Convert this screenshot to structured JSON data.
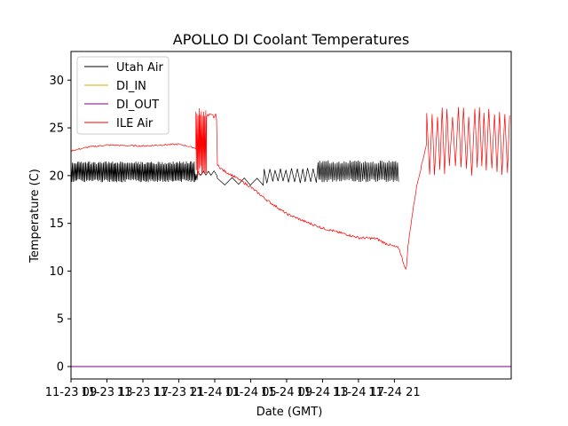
{
  "chart_data": {
    "type": "line",
    "title": "APOLLO DI Coolant Temperatures",
    "xlabel": "Date (GMT)",
    "ylabel": "Temperature (C)",
    "xlim": [
      0,
      49
    ],
    "ylim": [
      -1.3,
      33
    ],
    "x_unit": "hours since 11-23 09:00 GMT",
    "xticks": [
      {
        "x": 0,
        "label": "11-23 09"
      },
      {
        "x": 4,
        "label": "11-23 13"
      },
      {
        "x": 8,
        "label": "11-23 17"
      },
      {
        "x": 12,
        "label": "11-23 21"
      },
      {
        "x": 16,
        "label": "11-24 01"
      },
      {
        "x": 20,
        "label": "11-24 05"
      },
      {
        "x": 24,
        "label": "11-24 09"
      },
      {
        "x": 28,
        "label": "11-24 13"
      },
      {
        "x": 32,
        "label": "11-24 17"
      },
      {
        "x": 36,
        "label": "11-24 21"
      }
    ],
    "yticks": [
      0,
      5,
      10,
      15,
      20,
      25,
      30
    ],
    "legend_position": "top-left",
    "series": [
      {
        "name": "Utah Air",
        "color": "#000000",
        "style": "oscillating",
        "segments": [
          {
            "from": 0,
            "to": 13.8,
            "low": 19.3,
            "high": 21.5,
            "period": 0.15
          },
          {
            "from": 13.8,
            "to": 14.1,
            "low": 19.5,
            "high": 20.2,
            "period": 0.15
          },
          {
            "from": 14.1,
            "to": 16.3,
            "low": 20.0,
            "high": 20.5,
            "period": 0.6
          },
          {
            "from": 16.3,
            "to": 21.5,
            "low": 19.0,
            "high": 19.8,
            "period": 1.5
          },
          {
            "from": 21.5,
            "to": 27.5,
            "low": 19.2,
            "high": 20.8,
            "period": 0.6
          },
          {
            "from": 27.5,
            "to": 36.5,
            "low": 19.3,
            "high": 21.6,
            "period": 0.2
          }
        ]
      },
      {
        "name": "DI_IN",
        "color": "#d4b106",
        "style": "flat",
        "value": 0
      },
      {
        "name": "DI_OUT",
        "color": "#800080",
        "style": "flat",
        "value": 0
      },
      {
        "name": "ILE Air",
        "color": "#ff0000",
        "style": "mixed",
        "trend": [
          {
            "x": 0,
            "y": 22.6
          },
          {
            "x": 1,
            "y": 22.8
          },
          {
            "x": 2,
            "y": 23.0
          },
          {
            "x": 4,
            "y": 23.2
          },
          {
            "x": 8,
            "y": 23.1
          },
          {
            "x": 12,
            "y": 23.3
          },
          {
            "x": 13.8,
            "y": 22.9
          },
          {
            "x": 16.4,
            "y": 21.0
          },
          {
            "x": 17,
            "y": 20.5
          },
          {
            "x": 18,
            "y": 20.0
          },
          {
            "x": 20,
            "y": 18.8
          },
          {
            "x": 22,
            "y": 17.3
          },
          {
            "x": 24,
            "y": 16.0
          },
          {
            "x": 26,
            "y": 15.2
          },
          {
            "x": 28,
            "y": 14.5
          },
          {
            "x": 30,
            "y": 14.0
          },
          {
            "x": 32,
            "y": 13.5
          },
          {
            "x": 34,
            "y": 13.4
          },
          {
            "x": 35,
            "y": 12.9
          },
          {
            "x": 36.5,
            "y": 12.4
          },
          {
            "x": 37.3,
            "y": 10.0
          },
          {
            "x": 37.5,
            "y": 12.5
          },
          {
            "x": 38.0,
            "y": 16.0
          },
          {
            "x": 38.5,
            "y": 19.0
          },
          {
            "x": 39.0,
            "y": 21.0
          },
          {
            "x": 39.5,
            "y": 23.0
          },
          {
            "x": 40.0,
            "y": 25.0
          }
        ],
        "oscillation_segments": [
          {
            "from": 13.9,
            "to": 15.1,
            "low": 20.0,
            "high": 27.2,
            "period": 0.12
          },
          {
            "from": 39.6,
            "to": 49.0,
            "low": 20.0,
            "high": 27.2,
            "period": 0.6
          }
        ],
        "plateau": {
          "from": 15.1,
          "to": 16.2,
          "y": 26.2
        }
      }
    ]
  }
}
